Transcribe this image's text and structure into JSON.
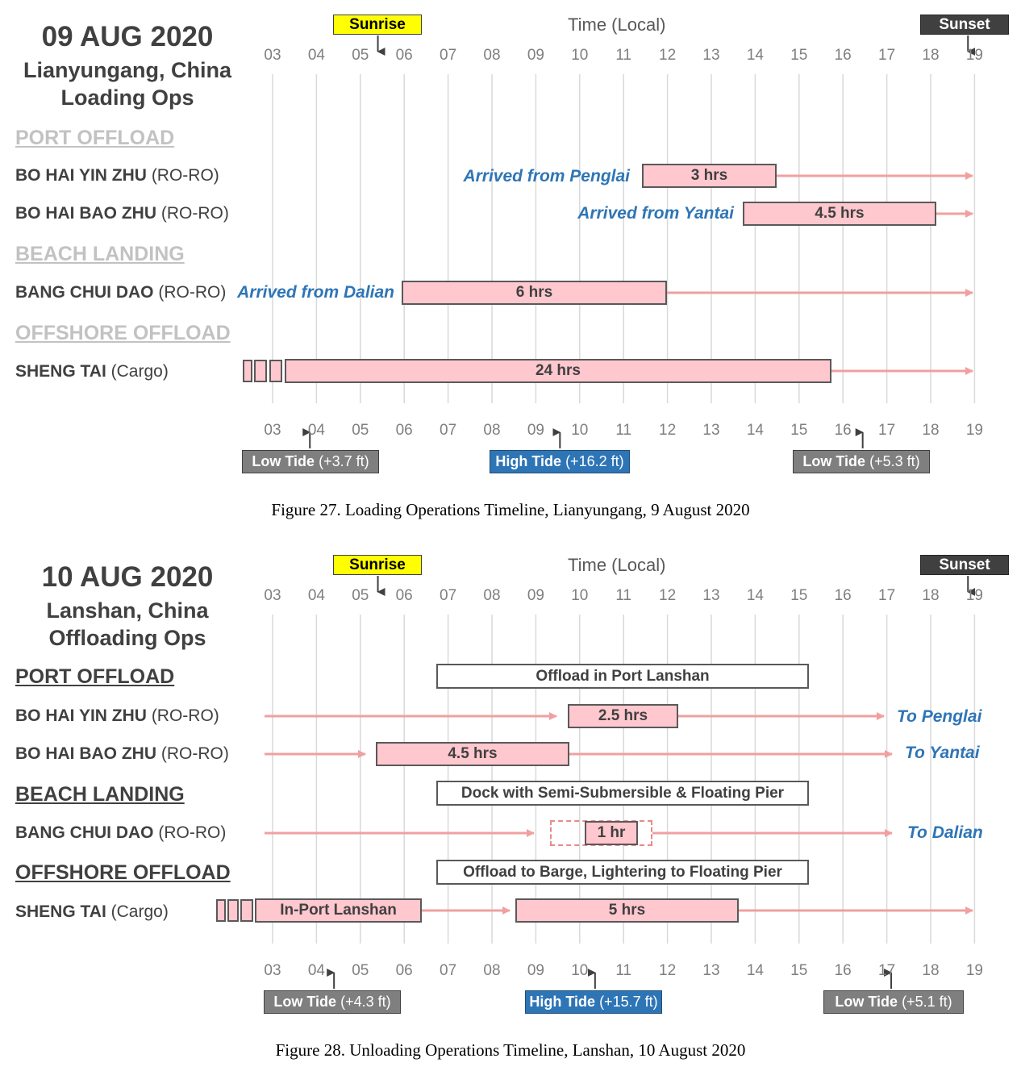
{
  "colors": {
    "bar_fill": "#ffc7ce",
    "arrow": "#f0a0a0",
    "note_blue": "#2e75b6",
    "sunrise": "#ffff00",
    "sunset": "#404040",
    "high_tide": "#2e75b6",
    "low_tide": "#7f7f7f"
  },
  "hours": [
    "03",
    "04",
    "05",
    "06",
    "07",
    "08",
    "09",
    "10",
    "11",
    "12",
    "13",
    "14",
    "15",
    "16",
    "17",
    "18",
    "19"
  ],
  "figures": [
    {
      "date": "09 AUG 2020",
      "location": "Lianyungang, China",
      "ops": "Loading Ops",
      "time_label": "Time (Local)",
      "sunrise": {
        "label": "Sunrise",
        "hour": 5.4
      },
      "sunset": {
        "label": "Sunset",
        "hour": 18.85
      },
      "categories": [
        "PORT OFFLOAD",
        "BEACH LANDING",
        "OFFSHORE OFFLOAD"
      ],
      "rows": [
        {
          "ship": "BO HAI YIN ZHU",
          "type": "(RO-RO)",
          "note": "Arrived from Penglai",
          "bar_label": "3 hrs",
          "bar_start": 11.5,
          "bar_end": 14.5,
          "arrow_end": 19.0
        },
        {
          "ship": "BO HAI BAO ZHU",
          "type": "(RO-RO)",
          "note": "Arrived from Yantai",
          "bar_label": "4.5 hrs",
          "bar_start": 13.8,
          "bar_end": 18.15,
          "arrow_end": 19.0
        },
        {
          "ship": "BANG CHUI DAO",
          "type": "(RO-RO)",
          "note": "Arrived from Dalian",
          "bar_label": "6 hrs",
          "bar_start": 6.0,
          "bar_end": 12.0,
          "arrow_end": 19.0
        },
        {
          "ship": "SHENG TAI",
          "type": "(Cargo)",
          "note": "",
          "bar_label": "24 hrs",
          "bar_start": 3.3,
          "bar_end": 15.75,
          "arrow_end": 19.0
        }
      ],
      "tides": [
        {
          "kind": "Low Tide",
          "height": "(+3.7 ft)",
          "hour": 3.85,
          "high": false
        },
        {
          "kind": "High Tide",
          "height": "(+16.2 ft)",
          "hour": 9.55,
          "high": true
        },
        {
          "kind": "Low Tide",
          "height": "(+5.3 ft)",
          "hour": 16.45,
          "high": false
        }
      ],
      "caption": "Figure 27. Loading Operations Timeline, Lianyungang, 9 August 2020"
    },
    {
      "date": "10 AUG 2020",
      "location": "Lanshan, China",
      "ops": "Offloading Ops",
      "time_label": "Time (Local)",
      "sunrise": {
        "label": "Sunrise",
        "hour": 5.4
      },
      "sunset": {
        "label": "Sunset",
        "hour": 18.85
      },
      "categories": [
        "PORT OFFLOAD",
        "BEACH LANDING",
        "OFFSHORE OFFLOAD"
      ],
      "phases": [
        "Offload in Port Lanshan",
        "Dock with Semi-Submersible & Floating Pier",
        "Offload to Barge, Lightering to Floating Pier"
      ],
      "rows": [
        {
          "ship": "BO HAI YIN ZHU",
          "type": "(RO-RO)",
          "bar_label": "2.5 hrs",
          "destination": "To Penglai"
        },
        {
          "ship": "BO HAI BAO ZHU",
          "type": "(RO-RO)",
          "bar_label": "4.5 hrs",
          "destination": "To Yantai"
        },
        {
          "ship": "BANG CHUI DAO",
          "type": "(RO-RO)",
          "bar_label": "1 hr",
          "destination": "To Dalian"
        },
        {
          "ship": "SHENG TAI",
          "type": "(Cargo)",
          "bar_label": "5 hrs",
          "pre_label": "In-Port Lanshan",
          "destination": ""
        }
      ],
      "tides": [
        {
          "kind": "Low Tide",
          "height": "(+4.3 ft)",
          "hour": 4.4,
          "high": false
        },
        {
          "kind": "High Tide",
          "height": "(+15.7 ft)",
          "hour": 10.35,
          "high": true
        },
        {
          "kind": "Low Tide",
          "height": "(+5.1 ft)",
          "hour": 17.1,
          "high": false
        }
      ],
      "caption": "Figure 28. Unloading Operations Timeline, Lanshan, 10 August 2020"
    }
  ]
}
